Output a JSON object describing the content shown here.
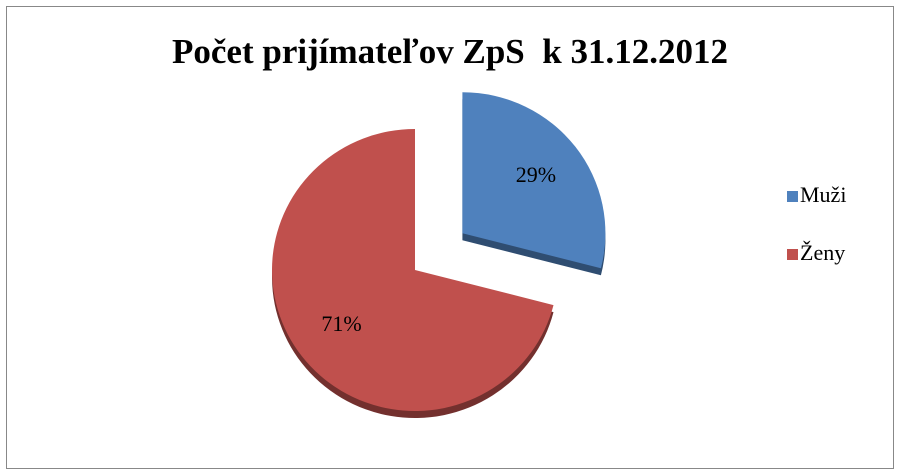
{
  "chart_data": {
    "type": "pie",
    "title": "Počet prijímateľov ZpS  k 31.12.2012",
    "categories": [
      "Muži",
      "Ženy"
    ],
    "values": [
      29,
      71
    ],
    "value_labels": [
      "29%",
      "71%"
    ],
    "colors": [
      "#4f81bd",
      "#c0504d"
    ],
    "exploded": [
      true,
      false
    ],
    "legend": "right"
  }
}
